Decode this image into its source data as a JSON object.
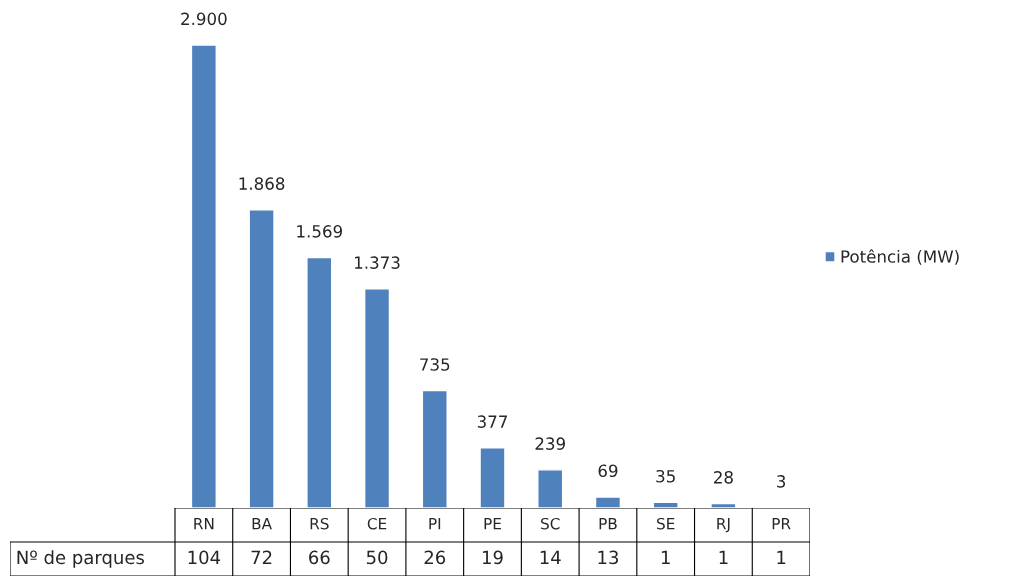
{
  "chart_data": [
    {
      "type": "bar",
      "categories": [
        "RN",
        "BA",
        "RS",
        "CE",
        "PI",
        "PE",
        "SC",
        "PB",
        "SE",
        "RJ",
        "PR"
      ],
      "series": [
        {
          "name": "Potência (MW)",
          "color": "#4f81bd",
          "values": [
            2900,
            1868,
            1569,
            1373,
            735,
            377,
            239,
            69,
            35,
            28,
            3
          ],
          "value_labels": [
            "2.900",
            "1.868",
            "1.569",
            "1.373",
            "735",
            "377",
            "239",
            "69",
            "35",
            "28",
            "3"
          ]
        }
      ],
      "legend": "right"
    },
    {
      "type": "other",
      "ylabel": "Nº de parques",
      "values": [
        104,
        72,
        66,
        50,
        26,
        19,
        14,
        13,
        1,
        1,
        1
      ],
      "data_labels": true
    }
  ]
}
